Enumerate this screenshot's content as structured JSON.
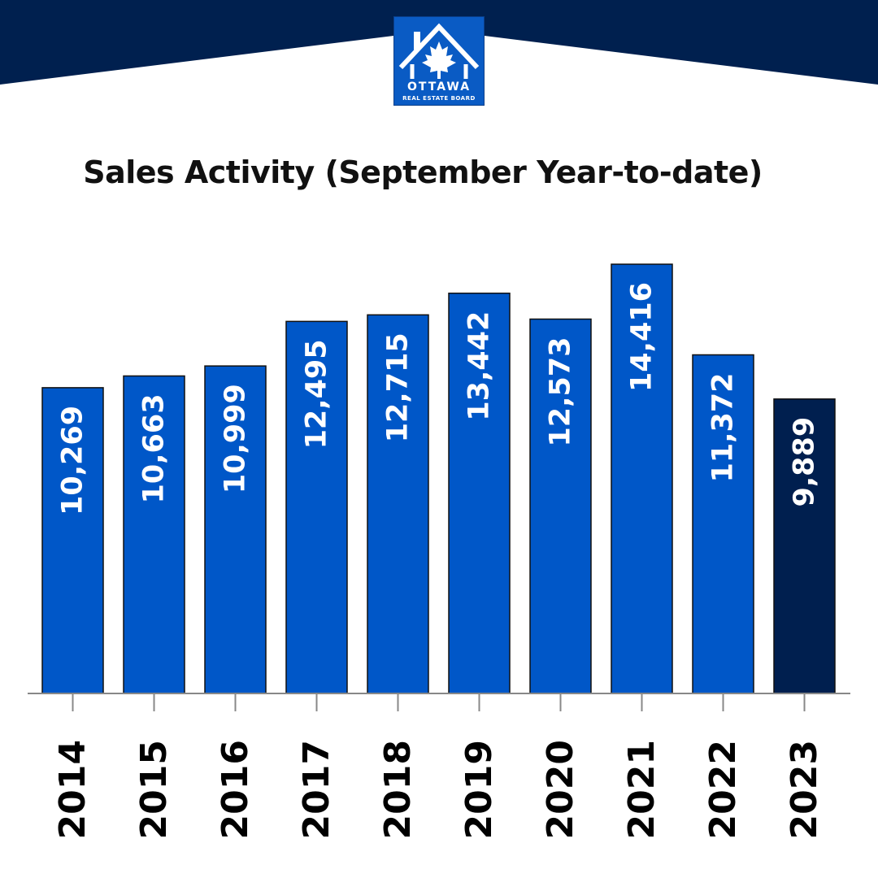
{
  "logo": {
    "line1": "OTTAWA",
    "line2": "REAL ESTATE BOARD"
  },
  "colors": {
    "navy": "#00204f",
    "bar": "#0057c8",
    "bar_highlight": "#001f4f",
    "logo_blue": "#0a5bc4"
  },
  "chart_data": {
    "type": "bar",
    "title": "Sales Activity (September Year-to-date)",
    "categories": [
      "2014",
      "2015",
      "2016",
      "2017",
      "2018",
      "2019",
      "2020",
      "2021",
      "2022",
      "2023"
    ],
    "values": [
      10269,
      10663,
      10999,
      12495,
      12715,
      13442,
      12573,
      14416,
      11372,
      9889
    ],
    "data_labels": [
      "10,269",
      "10,663",
      "10,999",
      "12,495",
      "12,715",
      "13,442",
      "12,573",
      "14,416",
      "11,372",
      "9,889"
    ],
    "highlight_category": "2023",
    "ylim": [
      0,
      14416
    ],
    "grid": false,
    "legend": "none",
    "xlabel": "",
    "ylabel": ""
  }
}
